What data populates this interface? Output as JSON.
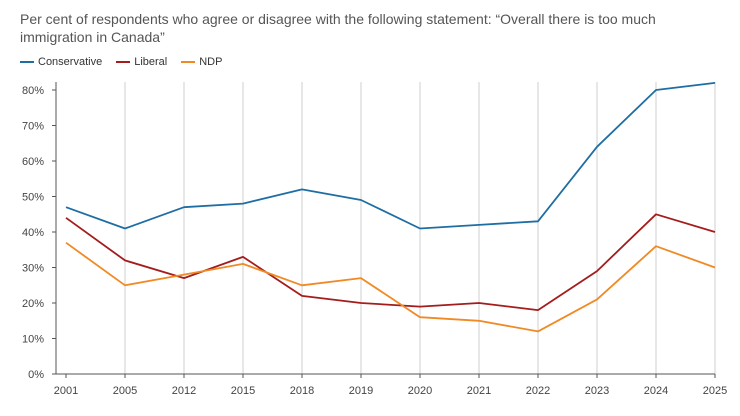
{
  "subtitle": "Per cent of respondents who agree or disagree with the following statement: “Overall there is too much immigration in Canada”",
  "legend": [
    {
      "label": "Conservative",
      "color": "#1f6ea3"
    },
    {
      "label": "Liberal",
      "color": "#a51c1c"
    },
    {
      "label": "NDP",
      "color": "#f08a24"
    }
  ],
  "chart_data": {
    "type": "line",
    "title": "",
    "xlabel": "",
    "ylabel": "",
    "x": [
      "2001",
      "2005",
      "2012",
      "2015",
      "2018",
      "2019",
      "2020",
      "2021",
      "2022",
      "2023",
      "2024",
      "2025"
    ],
    "ylim": [
      0,
      80
    ],
    "yticks": [
      0,
      10,
      20,
      30,
      40,
      50,
      60,
      70,
      80
    ],
    "ytick_labels": [
      "0%",
      "10%",
      "20%",
      "30%",
      "40%",
      "50%",
      "60%",
      "70%",
      "80%"
    ],
    "grid": "vertical",
    "legend_position": "top-left",
    "series": [
      {
        "name": "Conservative",
        "color": "#1f6ea3",
        "values": [
          47,
          41,
          47,
          48,
          52,
          49,
          41,
          42,
          43,
          64,
          80,
          82
        ]
      },
      {
        "name": "Liberal",
        "color": "#a51c1c",
        "values": [
          44,
          32,
          27,
          33,
          22,
          20,
          19,
          20,
          18,
          29,
          45,
          40
        ]
      },
      {
        "name": "NDP",
        "color": "#f08a24",
        "values": [
          37,
          25,
          28,
          31,
          25,
          27,
          16,
          15,
          12,
          21,
          36,
          30
        ]
      }
    ]
  }
}
